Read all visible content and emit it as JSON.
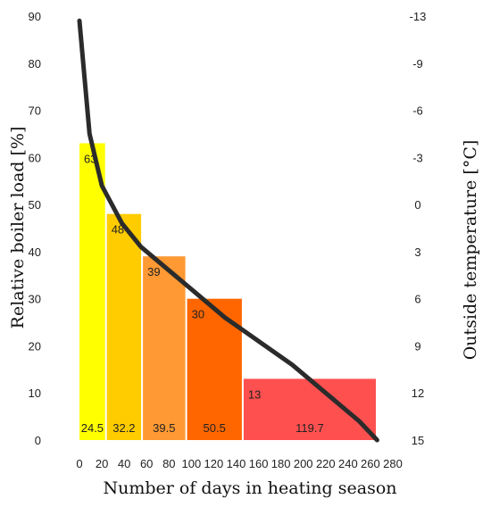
{
  "chart_data": {
    "type": "bar",
    "xlabel": "Number of days in heating season",
    "ylabel": "Relative boiler load [%]",
    "y2label": "Outside temperature [°C]",
    "xlim": [
      0,
      280
    ],
    "ylim": [
      0,
      90
    ],
    "y2lim": [
      15,
      -13
    ],
    "xticks": [
      0,
      20,
      40,
      60,
      80,
      100,
      120,
      140,
      160,
      180,
      200,
      220,
      240,
      260,
      280
    ],
    "yticks": [
      0,
      10,
      20,
      30,
      40,
      50,
      60,
      70,
      80,
      90
    ],
    "y2ticks": [
      15,
      12,
      9,
      6,
      3,
      0,
      -3,
      -6,
      -9,
      -13
    ],
    "bars": [
      {
        "x_start": 0,
        "width": 24.5,
        "load": 63,
        "load_label": "63",
        "width_label": "24.5",
        "color": "#ffff00"
      },
      {
        "x_start": 24.5,
        "width": 32.2,
        "load": 48,
        "load_label": "48",
        "width_label": "32.2",
        "color": "#ffcc00"
      },
      {
        "x_start": 56.7,
        "width": 39.5,
        "load": 39,
        "load_label": "39",
        "width_label": "39.5",
        "color": "#ff9933"
      },
      {
        "x_start": 96.2,
        "width": 50.5,
        "load": 30,
        "load_label": "30",
        "width_label": "50.5",
        "color": "#ff6600"
      },
      {
        "x_start": 146.7,
        "width": 119.7,
        "load": 13,
        "load_label": "13",
        "width_label": "119.7",
        "color": "#ff5050"
      }
    ],
    "series": [
      {
        "color": "#2b2b2b",
        "x": [
          0,
          9,
          20,
          38,
          55,
          75,
          100,
          130,
          160,
          190,
          220,
          250,
          266
        ],
        "y": [
          89,
          65,
          54,
          46,
          41,
          37,
          32,
          26,
          21,
          16,
          10,
          4,
          0
        ]
      }
    ]
  }
}
